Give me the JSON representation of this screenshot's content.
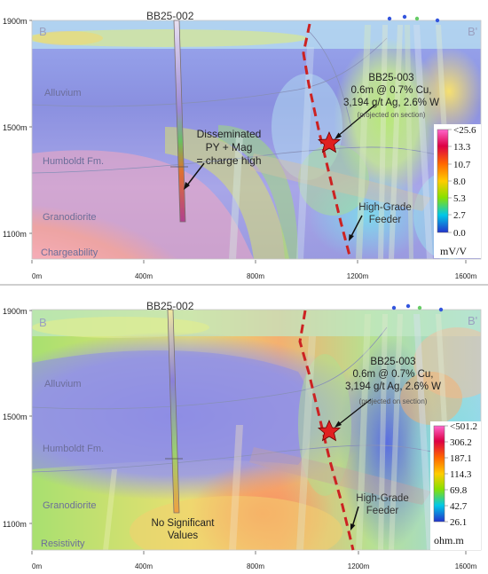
{
  "sections": [
    {
      "corner_left": "B",
      "corner_right": "B'",
      "drillhole_top": "BB25-002",
      "drillhole_right": "BB25-003",
      "intercept_line1": "0.6m @ 0.7% Cu,",
      "intercept_line2": "3,194 g/t Ag,  2.6% W",
      "intercept_note": "(projected on section)",
      "feeder_label_1": "High-Grade",
      "feeder_label_2": "Feeder",
      "units": [
        "Alluvium",
        "Humboldt Fm.",
        "Granodiorite"
      ],
      "survey_label": "Chargeability",
      "annotation": [
        "Disseminated",
        "PY + Mag",
        "= charge high"
      ],
      "legend": {
        "values": [
          "<25.6",
          "13.3",
          "10.7",
          "8.0",
          "5.3",
          "2.7",
          "0.0"
        ],
        "unit": "mV/V",
        "colors": [
          "#ff66cc",
          "#dd0044",
          "#ff6600",
          "#ffcc00",
          "#88e000",
          "#00c8e8",
          "#2233cc"
        ]
      },
      "y_ticks": [
        "1900m",
        "1500m",
        "1100m"
      ],
      "x_ticks": [
        "0m",
        "400m",
        "800m",
        "1200m",
        "1600m"
      ]
    },
    {
      "corner_left": "B",
      "corner_right": "B'",
      "drillhole_top": "BB25-002",
      "drillhole_right": "BB25-003",
      "intercept_line1": "0.6m @ 0.7% Cu,",
      "intercept_line2": "3,194 g/t Ag,  2.6% W",
      "intercept_note": "(projected on section)",
      "feeder_label_1": "High-Grade",
      "feeder_label_2": "Feeder",
      "units": [
        "Alluvium",
        "Humboldt Fm.",
        "Granodiorite"
      ],
      "survey_label": "Resistivity",
      "annotation": [
        "No Significant",
        "Values"
      ],
      "legend": {
        "values": [
          "<501.2",
          "306.2",
          "187.1",
          "114.3",
          "69.8",
          "42.7",
          "26.1"
        ],
        "unit": "ohm.m",
        "colors": [
          "#ff66cc",
          "#dd0044",
          "#ff6600",
          "#ffcc00",
          "#88e000",
          "#00c8e8",
          "#2233cc"
        ]
      },
      "y_ticks": [
        "1900m",
        "1500m",
        "1100m"
      ],
      "x_ticks": [
        "0m",
        "400m",
        "800m",
        "1200m",
        "1600m"
      ]
    }
  ]
}
